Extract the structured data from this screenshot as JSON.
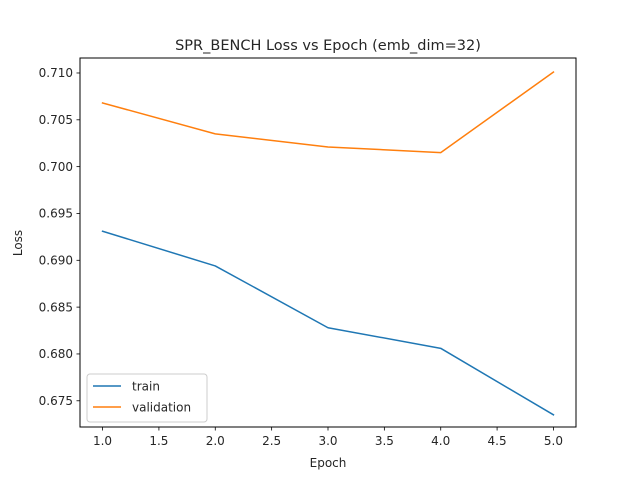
{
  "chart_data": {
    "type": "line",
    "title": "SPR_BENCH Loss vs Epoch (emb_dim=32)",
    "xlabel": "Epoch",
    "ylabel": "Loss",
    "x": [
      1.0,
      2.0,
      3.0,
      4.0,
      5.0
    ],
    "xlim": [
      0.8,
      5.2
    ],
    "ylim": [
      0.6722,
      0.7116
    ],
    "xticks": [
      1.0,
      1.5,
      2.0,
      2.5,
      3.0,
      3.5,
      4.0,
      4.5,
      5.0
    ],
    "xtick_labels": [
      "1.0",
      "1.5",
      "2.0",
      "2.5",
      "3.0",
      "3.5",
      "4.0",
      "4.5",
      "5.0"
    ],
    "yticks": [
      0.675,
      0.68,
      0.685,
      0.69,
      0.695,
      0.7,
      0.705,
      0.71
    ],
    "ytick_labels": [
      "0.675",
      "0.680",
      "0.685",
      "0.690",
      "0.695",
      "0.700",
      "0.705",
      "0.710"
    ],
    "grid": false,
    "legend_position": "lower-left",
    "series": [
      {
        "name": "train",
        "color": "#1f77b4",
        "values": [
          0.6931,
          0.6894,
          0.6828,
          0.6806,
          0.6735
        ]
      },
      {
        "name": "validation",
        "color": "#ff7f0e",
        "values": [
          0.7068,
          0.7035,
          0.7021,
          0.7015,
          0.7101
        ]
      }
    ]
  }
}
